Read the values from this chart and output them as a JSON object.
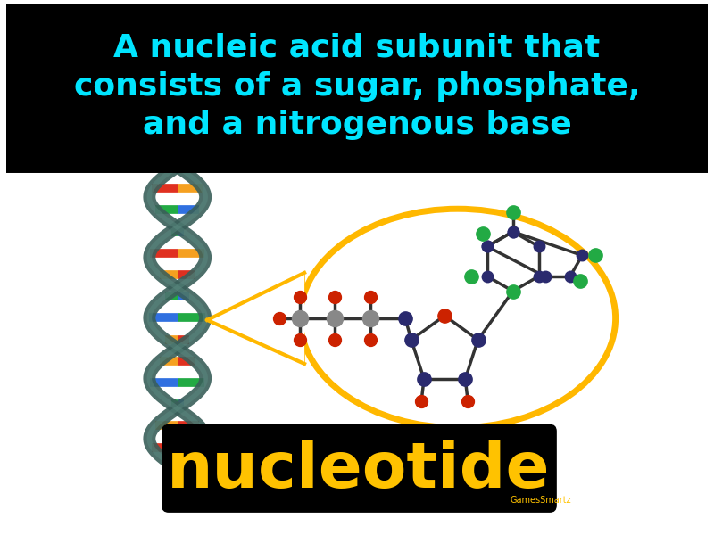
{
  "bg_color": "#ffffff",
  "header_bg": "#000000",
  "header_text": "A nucleic acid subunit that\nconsists of a sugar, phosphate,\nand a nitrogenous base",
  "header_text_color": "#00e5ff",
  "header_fontsize": 26,
  "footer_bg": "#000000",
  "footer_text": "nucleotide",
  "footer_text_color": "#ffc200",
  "footer_fontsize": 52,
  "watermark": "GamesSmartz",
  "watermark_color": "#ffc200",
  "ellipse_color": "#ffb800",
  "ellipse_lw": 5,
  "dna_helix_color": "#3a5f5a",
  "arrow_color": "#ffb800",
  "phosphate_gray": "#888888",
  "oxygen_red": "#cc2200",
  "sugar_blue": "#2a2a6e",
  "base_blue": "#2a2a6e",
  "base_green": "#22aa44",
  "bond_color": "#333333"
}
